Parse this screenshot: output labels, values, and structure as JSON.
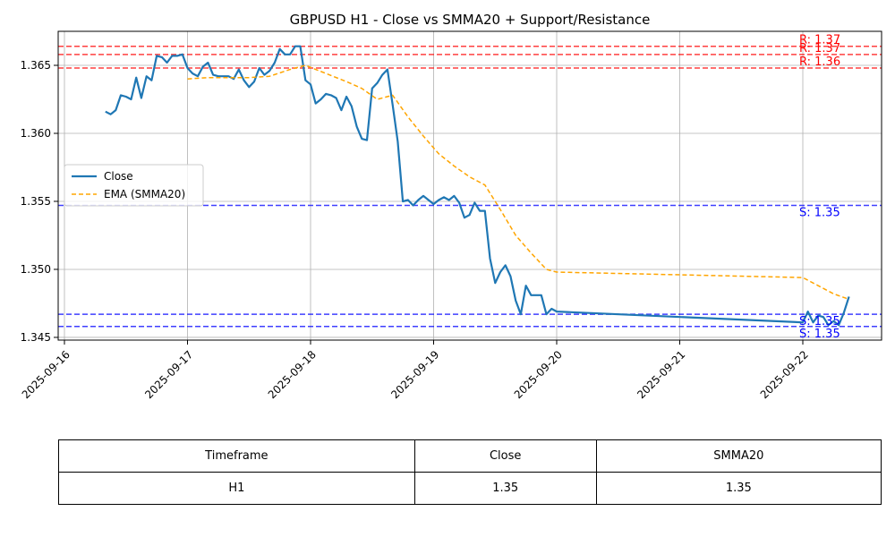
{
  "chart_data": {
    "type": "line",
    "title": "GBPUSD H1 - Close vs SMMA20 + Support/Resistance",
    "xlabel": "",
    "ylabel": "",
    "x_ticks": [
      "2025-09-16",
      "2025-09-17",
      "2025-09-18",
      "2025-09-19",
      "2025-09-20",
      "2025-09-21",
      "2025-09-22"
    ],
    "y_ticks": [
      "1.345",
      "1.350",
      "1.355",
      "1.360",
      "1.365"
    ],
    "ylim": [
      1.3448,
      1.3675
    ],
    "grid": true,
    "legend_position": "center-left",
    "series": [
      {
        "name": "Close",
        "color": "#1f77b4",
        "style": "solid",
        "points": [
          [
            "2025-09-16T08:00",
            1.3616
          ],
          [
            "2025-09-16T09:00",
            1.3614
          ],
          [
            "2025-09-16T10:00",
            1.3617
          ],
          [
            "2025-09-16T11:00",
            1.3628
          ],
          [
            "2025-09-16T12:00",
            1.3627
          ],
          [
            "2025-09-16T13:00",
            1.3625
          ],
          [
            "2025-09-16T14:00",
            1.3641
          ],
          [
            "2025-09-16T15:00",
            1.3626
          ],
          [
            "2025-09-16T16:00",
            1.3642
          ],
          [
            "2025-09-16T17:00",
            1.3639
          ],
          [
            "2025-09-16T18:00",
            1.3657
          ],
          [
            "2025-09-16T19:00",
            1.3656
          ],
          [
            "2025-09-16T20:00",
            1.3652
          ],
          [
            "2025-09-16T21:00",
            1.3657
          ],
          [
            "2025-09-16T22:00",
            1.3657
          ],
          [
            "2025-09-16T23:00",
            1.3658
          ],
          [
            "2025-09-17T00:00",
            1.3648
          ],
          [
            "2025-09-17T01:00",
            1.3644
          ],
          [
            "2025-09-17T02:00",
            1.3642
          ],
          [
            "2025-09-17T03:00",
            1.3649
          ],
          [
            "2025-09-17T04:00",
            1.3652
          ],
          [
            "2025-09-17T05:00",
            1.3643
          ],
          [
            "2025-09-17T06:00",
            1.3642
          ],
          [
            "2025-09-17T07:00",
            1.3642
          ],
          [
            "2025-09-17T08:00",
            1.3642
          ],
          [
            "2025-09-17T09:00",
            1.364
          ],
          [
            "2025-09-17T10:00",
            1.3647
          ],
          [
            "2025-09-17T11:00",
            1.3639
          ],
          [
            "2025-09-17T12:00",
            1.3634
          ],
          [
            "2025-09-17T13:00",
            1.3638
          ],
          [
            "2025-09-17T14:00",
            1.3648
          ],
          [
            "2025-09-17T15:00",
            1.3643
          ],
          [
            "2025-09-17T16:00",
            1.3646
          ],
          [
            "2025-09-17T17:00",
            1.3652
          ],
          [
            "2025-09-17T18:00",
            1.3662
          ],
          [
            "2025-09-17T19:00",
            1.3658
          ],
          [
            "2025-09-17T20:00",
            1.3658
          ],
          [
            "2025-09-17T21:00",
            1.3664
          ],
          [
            "2025-09-17T22:00",
            1.3664
          ],
          [
            "2025-09-17T23:00",
            1.3639
          ],
          [
            "2025-09-18T00:00",
            1.3636
          ],
          [
            "2025-09-18T01:00",
            1.3622
          ],
          [
            "2025-09-18T02:00",
            1.3625
          ],
          [
            "2025-09-18T03:00",
            1.3629
          ],
          [
            "2025-09-18T04:00",
            1.3628
          ],
          [
            "2025-09-18T05:00",
            1.3626
          ],
          [
            "2025-09-18T06:00",
            1.3617
          ],
          [
            "2025-09-18T07:00",
            1.3627
          ],
          [
            "2025-09-18T08:00",
            1.362
          ],
          [
            "2025-09-18T09:00",
            1.3605
          ],
          [
            "2025-09-18T10:00",
            1.3596
          ],
          [
            "2025-09-18T11:00",
            1.3595
          ],
          [
            "2025-09-18T12:00",
            1.3633
          ],
          [
            "2025-09-18T13:00",
            1.3637
          ],
          [
            "2025-09-18T14:00",
            1.3643
          ],
          [
            "2025-09-18T15:00",
            1.3647
          ],
          [
            "2025-09-18T16:00",
            1.3621
          ],
          [
            "2025-09-18T17:00",
            1.3594
          ],
          [
            "2025-09-18T18:00",
            1.355
          ],
          [
            "2025-09-18T19:00",
            1.3551
          ],
          [
            "2025-09-18T20:00",
            1.3547
          ],
          [
            "2025-09-18T21:00",
            1.3551
          ],
          [
            "2025-09-18T22:00",
            1.3554
          ],
          [
            "2025-09-18T23:00",
            1.3551
          ],
          [
            "2025-09-19T00:00",
            1.3548
          ],
          [
            "2025-09-19T01:00",
            1.3551
          ],
          [
            "2025-09-19T02:00",
            1.3553
          ],
          [
            "2025-09-19T03:00",
            1.3551
          ],
          [
            "2025-09-19T04:00",
            1.3554
          ],
          [
            "2025-09-19T05:00",
            1.3549
          ],
          [
            "2025-09-19T06:00",
            1.3538
          ],
          [
            "2025-09-19T07:00",
            1.354
          ],
          [
            "2025-09-19T08:00",
            1.3549
          ],
          [
            "2025-09-19T09:00",
            1.3543
          ],
          [
            "2025-09-19T10:00",
            1.3543
          ],
          [
            "2025-09-19T11:00",
            1.3508
          ],
          [
            "2025-09-19T12:00",
            1.349
          ],
          [
            "2025-09-19T13:00",
            1.3498
          ],
          [
            "2025-09-19T14:00",
            1.3503
          ],
          [
            "2025-09-19T15:00",
            1.3495
          ],
          [
            "2025-09-19T16:00",
            1.3477
          ],
          [
            "2025-09-19T17:00",
            1.3467
          ],
          [
            "2025-09-19T18:00",
            1.3488
          ],
          [
            "2025-09-19T19:00",
            1.3481
          ],
          [
            "2025-09-19T20:00",
            1.3481
          ],
          [
            "2025-09-19T21:00",
            1.3481
          ],
          [
            "2025-09-19T22:00",
            1.3467
          ],
          [
            "2025-09-19T23:00",
            1.3471
          ],
          [
            "2025-09-20T00:00",
            1.3469
          ],
          [
            "2025-09-22T00:00",
            1.3461
          ],
          [
            "2025-09-22T01:00",
            1.3469
          ],
          [
            "2025-09-22T02:00",
            1.3461
          ],
          [
            "2025-09-22T03:00",
            1.3466
          ],
          [
            "2025-09-22T04:00",
            1.3465
          ],
          [
            "2025-09-22T05:00",
            1.3459
          ],
          [
            "2025-09-22T06:00",
            1.3462
          ],
          [
            "2025-09-22T07:00",
            1.3459
          ],
          [
            "2025-09-22T08:00",
            1.3468
          ],
          [
            "2025-09-22T09:00",
            1.348
          ]
        ]
      },
      {
        "name": "EMA (SMMA20)",
        "color": "#ffa500",
        "style": "dashed",
        "points": [
          [
            "2025-09-17T00:00",
            1.364
          ],
          [
            "2025-09-17T04:00",
            1.3641
          ],
          [
            "2025-09-17T08:00",
            1.3641
          ],
          [
            "2025-09-17T12:00",
            1.3641
          ],
          [
            "2025-09-17T16:00",
            1.3642
          ],
          [
            "2025-09-17T20:00",
            1.3647
          ],
          [
            "2025-09-17T23:00",
            1.365
          ],
          [
            "2025-09-18T03:00",
            1.3644
          ],
          [
            "2025-09-18T07:00",
            1.3638
          ],
          [
            "2025-09-18T10:00",
            1.3633
          ],
          [
            "2025-09-18T13:00",
            1.3625
          ],
          [
            "2025-09-18T16:00",
            1.3628
          ],
          [
            "2025-09-18T19:00",
            1.3612
          ],
          [
            "2025-09-18T22:00",
            1.3598
          ],
          [
            "2025-09-19T01:00",
            1.3585
          ],
          [
            "2025-09-19T04:00",
            1.3576
          ],
          [
            "2025-09-19T07:00",
            1.3568
          ],
          [
            "2025-09-19T10:00",
            1.3562
          ],
          [
            "2025-09-19T13:00",
            1.3544
          ],
          [
            "2025-09-19T16:00",
            1.3525
          ],
          [
            "2025-09-19T19:00",
            1.3512
          ],
          [
            "2025-09-19T22:00",
            1.35
          ],
          [
            "2025-09-20T00:00",
            1.3498
          ],
          [
            "2025-09-22T00:00",
            1.3494
          ],
          [
            "2025-09-22T03:00",
            1.3488
          ],
          [
            "2025-09-22T06:00",
            1.3482
          ],
          [
            "2025-09-22T09:00",
            1.3478
          ]
        ]
      }
    ],
    "resistance_levels": [
      {
        "value": 1.3664,
        "label": "R: 1.37"
      },
      {
        "value": 1.3658,
        "label": "R: 1.37"
      },
      {
        "value": 1.3648,
        "label": "R: 1.36"
      }
    ],
    "support_levels": [
      {
        "value": 1.3547,
        "label": "S: 1.35"
      },
      {
        "value": 1.3467,
        "label": "S: 1.35"
      },
      {
        "value": 1.3458,
        "label": "S: 1.35"
      }
    ],
    "colors": {
      "close": "#1f77b4",
      "ema": "#ffa500",
      "resistance": "#ff0000",
      "support": "#0000ff",
      "grid": "#b0b0b0"
    }
  },
  "table": {
    "headers": [
      "Timeframe",
      "Close",
      "SMMA20"
    ],
    "row": [
      "H1",
      "1.35",
      "1.35"
    ]
  }
}
